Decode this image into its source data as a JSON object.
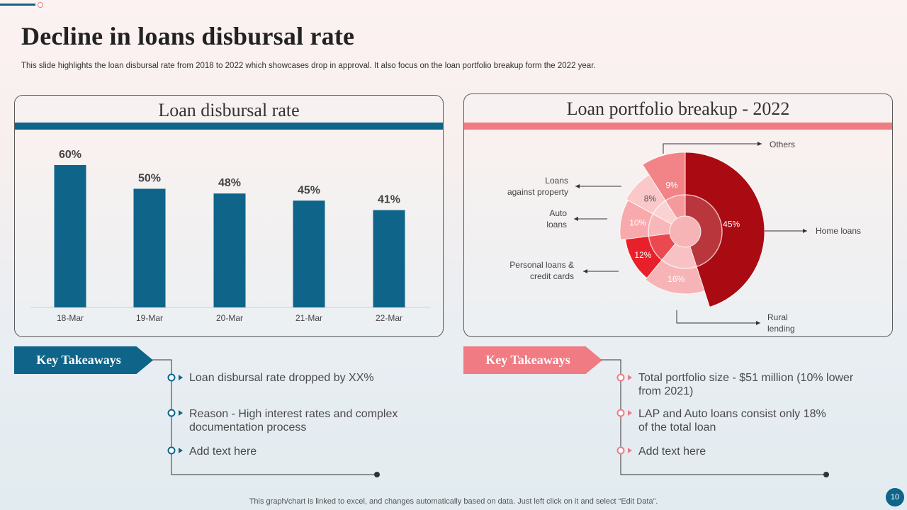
{
  "slide": {
    "title": "Decline in loans disbursal rate",
    "subtitle": "This slide highlights the loan disbursal rate from 2018 to 2022 which showcases drop in approval. It also focus on the loan portfolio breakup form the 2022 year.",
    "footer": "This graph/chart is linked to excel,  and changes automatically based on data. Just left click on it and select “Edit Data”.",
    "page_number": "10"
  },
  "left_panel": {
    "title": "Loan disbursal rate"
  },
  "right_panel": {
    "title": "Loan portfolio breakup - 2022"
  },
  "chart_data": [
    {
      "type": "bar",
      "title": "Loan disbursal rate",
      "categories": [
        "18-Mar",
        "19-Mar",
        "20-Mar",
        "21-Mar",
        "22-Mar"
      ],
      "values": [
        60,
        50,
        48,
        45,
        41
      ],
      "data_labels": [
        "60%",
        "50%",
        "48%",
        "45%",
        "41%"
      ],
      "ylim": [
        0,
        60
      ],
      "color": "#0e6489"
    },
    {
      "type": "pie",
      "title": "Loan portfolio breakup - 2022",
      "slices": [
        {
          "label": "Home loans",
          "value": 45,
          "text": "45%",
          "color": "#aa0a12"
        },
        {
          "label": "Rural lending",
          "value": 16,
          "text": "16%",
          "color": "#f7b4b6"
        },
        {
          "label": "Personal loans & credit cards",
          "value": 12,
          "text": "12%",
          "color": "#e8202a"
        },
        {
          "label": "Auto loans",
          "value": 10,
          "text": "10%",
          "color": "#f7a9ab"
        },
        {
          "label": "Loans against property",
          "value": 8,
          "text": "8%",
          "color": "#fac8c9"
        },
        {
          "label": "Others",
          "value": 9,
          "text": "9%",
          "color": "#f28387"
        }
      ],
      "callouts": {
        "others": "Others",
        "home": "Home loans",
        "rural": [
          "Rural",
          "lending"
        ],
        "personal": [
          "Personal loans &",
          "credit cards"
        ],
        "auto": [
          "Auto",
          "loans"
        ],
        "lap": [
          "Loans",
          "against property"
        ]
      }
    }
  ],
  "takeaways_left": {
    "heading": "Key Takeaways",
    "items": [
      [
        "Loan disbursal rate dropped by XX%"
      ],
      [
        "Reason - High interest rates and complex",
        "documentation process"
      ],
      [
        "Add text here"
      ]
    ]
  },
  "takeaways_right": {
    "heading": "Key Takeaways",
    "items": [
      [
        "Total portfolio size - $51 million (10% lower",
        "from 2021)"
      ],
      [
        "LAP and Auto loans consist only 18%",
        "of the total loan"
      ],
      [
        "Add text here"
      ]
    ]
  },
  "colors": {
    "primary": "#0e6489",
    "accent": "#f07b82",
    "dark_red": "#aa0a12"
  }
}
